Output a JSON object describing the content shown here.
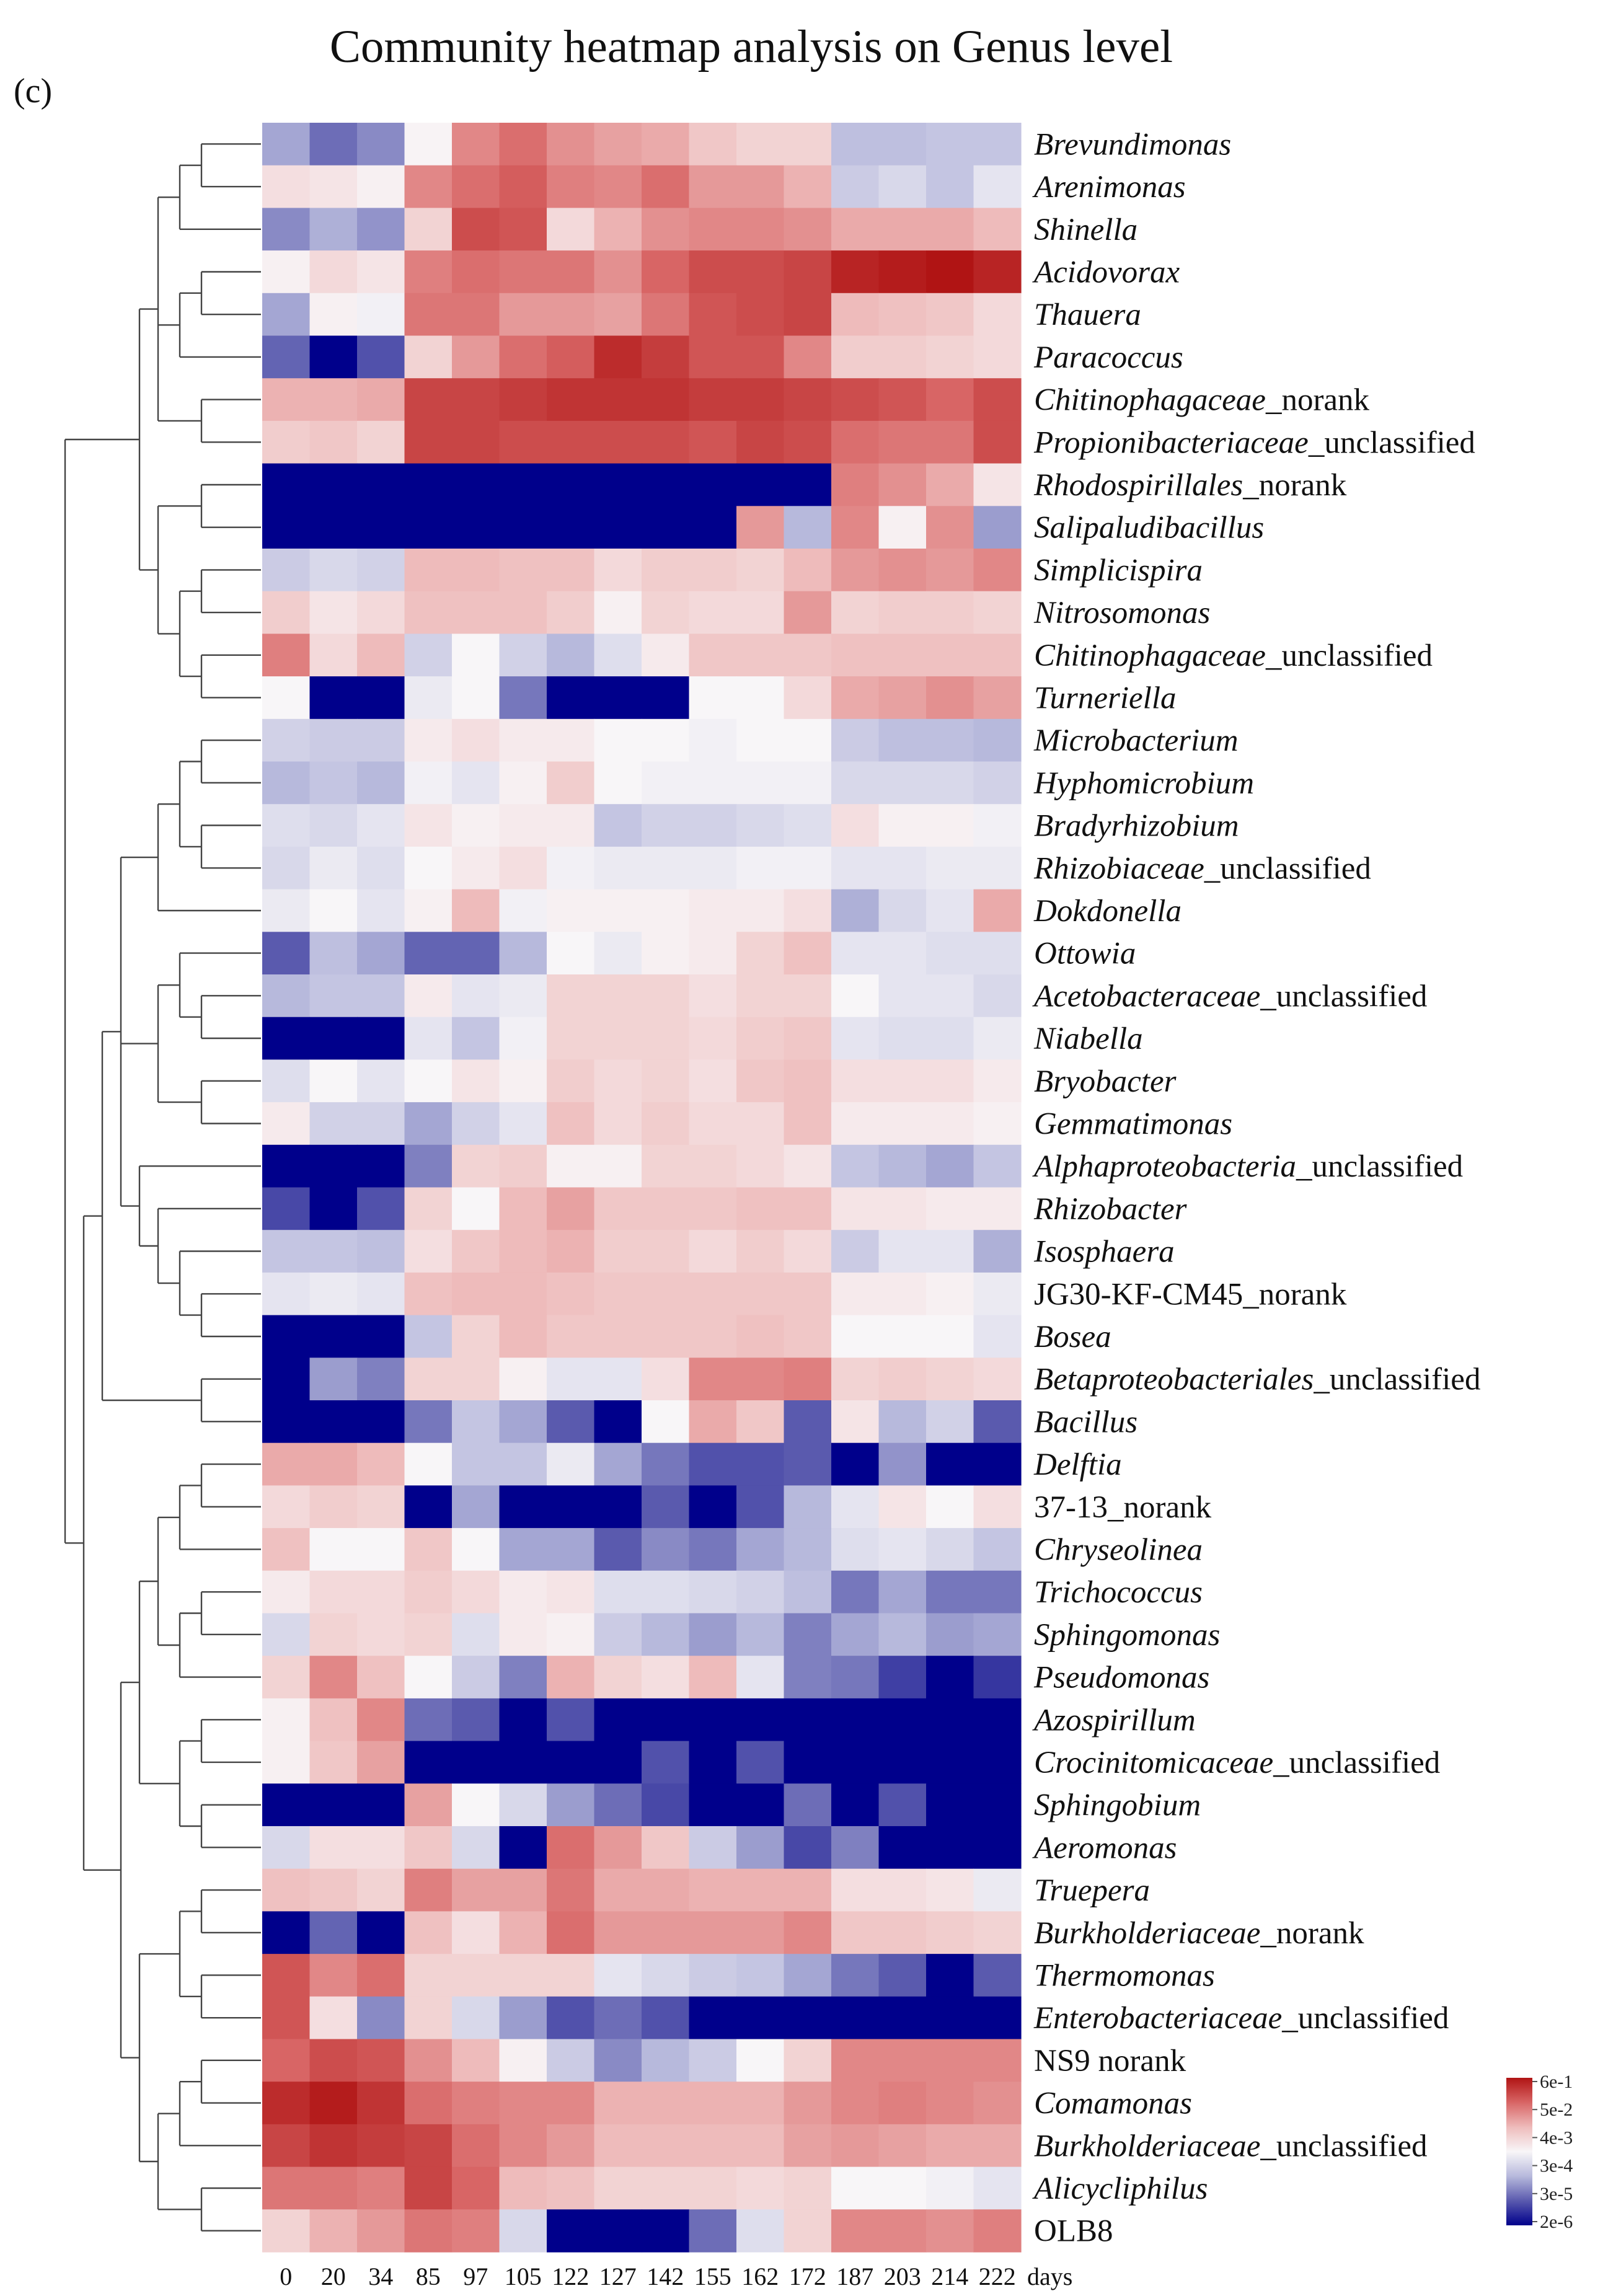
{
  "chart_data": {
    "type": "heatmap",
    "title": "Community heatmap analysis on Genus level",
    "panel_label": "(c)",
    "x_unit_label": "days",
    "columns": [
      "0",
      "20",
      "34",
      "85",
      "97",
      "105",
      "122",
      "127",
      "142",
      "155",
      "162",
      "172",
      "187",
      "203",
      "214",
      "222"
    ],
    "rows": [
      {
        "parts": [
          {
            "t": "Brevundimonas",
            "i": true
          }
        ]
      },
      {
        "parts": [
          {
            "t": "Arenimonas",
            "i": true
          }
        ]
      },
      {
        "parts": [
          {
            "t": "Shinella",
            "i": true
          }
        ]
      },
      {
        "parts": [
          {
            "t": "Acidovorax",
            "i": true
          }
        ]
      },
      {
        "parts": [
          {
            "t": "Thauera",
            "i": true
          }
        ]
      },
      {
        "parts": [
          {
            "t": "Paracoccus",
            "i": true
          }
        ]
      },
      {
        "parts": [
          {
            "t": "Chitinophagaceae",
            "i": true
          },
          {
            "t": "_norank",
            "i": false
          }
        ]
      },
      {
        "parts": [
          {
            "t": "Propionibacteriaceae",
            "i": true
          },
          {
            "t": "_unclassified",
            "i": false
          }
        ]
      },
      {
        "parts": [
          {
            "t": "Rhodospirillales",
            "i": true
          },
          {
            "t": "_norank",
            "i": false
          }
        ]
      },
      {
        "parts": [
          {
            "t": "Salipaludibacillus",
            "i": true
          }
        ]
      },
      {
        "parts": [
          {
            "t": "Simplicispira",
            "i": true
          }
        ]
      },
      {
        "parts": [
          {
            "t": "Nitrosomonas",
            "i": true
          }
        ]
      },
      {
        "parts": [
          {
            "t": "Chitinophagaceae",
            "i": true
          },
          {
            "t": "_unclassified",
            "i": false
          }
        ]
      },
      {
        "parts": [
          {
            "t": "Turneriella",
            "i": true
          }
        ]
      },
      {
        "parts": [
          {
            "t": "Microbacterium",
            "i": true
          }
        ]
      },
      {
        "parts": [
          {
            "t": "Hyphomicrobium",
            "i": true
          }
        ]
      },
      {
        "parts": [
          {
            "t": "Bradyrhizobium",
            "i": true
          }
        ]
      },
      {
        "parts": [
          {
            "t": "Rhizobiaceae",
            "i": true
          },
          {
            "t": "_unclassified",
            "i": false
          }
        ]
      },
      {
        "parts": [
          {
            "t": "Dokdonella",
            "i": true
          }
        ]
      },
      {
        "parts": [
          {
            "t": "Ottowia",
            "i": true
          }
        ]
      },
      {
        "parts": [
          {
            "t": "Acetobacteraceae",
            "i": true
          },
          {
            "t": "_unclassified",
            "i": false
          }
        ]
      },
      {
        "parts": [
          {
            "t": "Niabella",
            "i": true
          }
        ]
      },
      {
        "parts": [
          {
            "t": "Bryobacter",
            "i": true
          }
        ]
      },
      {
        "parts": [
          {
            "t": "Gemmatimonas",
            "i": true
          }
        ]
      },
      {
        "parts": [
          {
            "t": "Alphaproteobacteria",
            "i": true
          },
          {
            "t": "_unclassified",
            "i": false
          }
        ]
      },
      {
        "parts": [
          {
            "t": "Rhizobacter",
            "i": true
          }
        ]
      },
      {
        "parts": [
          {
            "t": "Isosphaera",
            "i": true
          }
        ]
      },
      {
        "parts": [
          {
            "t": "JG30-KF-CM45_norank",
            "i": false
          }
        ]
      },
      {
        "parts": [
          {
            "t": "Bosea",
            "i": true
          }
        ]
      },
      {
        "parts": [
          {
            "t": "Betaproteobacteriales",
            "i": true
          },
          {
            "t": "_unclassified",
            "i": false
          }
        ]
      },
      {
        "parts": [
          {
            "t": "Bacillus",
            "i": true
          }
        ]
      },
      {
        "parts": [
          {
            "t": "Delftia",
            "i": true
          }
        ]
      },
      {
        "parts": [
          {
            "t": "37-13_norank",
            "i": false
          }
        ]
      },
      {
        "parts": [
          {
            "t": "Chryseolinea",
            "i": true
          }
        ]
      },
      {
        "parts": [
          {
            "t": "Trichococcus",
            "i": true
          }
        ]
      },
      {
        "parts": [
          {
            "t": "Sphingomonas",
            "i": true
          }
        ]
      },
      {
        "parts": [
          {
            "t": "Pseudomonas",
            "i": true
          }
        ]
      },
      {
        "parts": [
          {
            "t": "Azospirillum",
            "i": true
          }
        ]
      },
      {
        "parts": [
          {
            "t": "Crocinitomicaceae",
            "i": true
          },
          {
            "t": "_unclassified",
            "i": false
          }
        ]
      },
      {
        "parts": [
          {
            "t": "Sphingobium",
            "i": true
          }
        ]
      },
      {
        "parts": [
          {
            "t": "Aeromonas",
            "i": true
          }
        ]
      },
      {
        "parts": [
          {
            "t": "Truepera",
            "i": true
          }
        ]
      },
      {
        "parts": [
          {
            "t": "Burkholderiaceae",
            "i": true
          },
          {
            "t": "_norank",
            "i": false
          }
        ]
      },
      {
        "parts": [
          {
            "t": "Thermomonas",
            "i": true
          }
        ]
      },
      {
        "parts": [
          {
            "t": "Enterobacteriaceae",
            "i": true
          },
          {
            "t": "_unclassified",
            "i": false
          }
        ]
      },
      {
        "parts": [
          {
            "t": "NS9 norank",
            "i": false
          }
        ]
      },
      {
        "parts": [
          {
            "t": "Comamonas",
            "i": true
          }
        ]
      },
      {
        "parts": [
          {
            "t": "Burkholderiaceae",
            "i": true
          },
          {
            "t": "_unclassified",
            "i": false
          }
        ]
      },
      {
        "parts": [
          {
            "t": "Alicycliphilus",
            "i": true
          }
        ]
      },
      {
        "parts": [
          {
            "t": "OLB8",
            "i": false
          }
        ]
      }
    ],
    "color_scale": {
      "levels": [
        -3,
        -2,
        -1,
        0,
        1,
        2,
        3
      ],
      "colors": [
        "#00008b",
        "#5a5aae",
        "#b7b9dc",
        "#f8f6f8",
        "#eebbbb",
        "#d86565",
        "#b01414"
      ],
      "legend_labels": [
        "6e-1",
        "5e-2",
        "4e-3",
        "3e-4",
        "3e-5",
        "2e-6"
      ]
    },
    "values": [
      [
        -1.2,
        -1.8,
        -1.5,
        0.05,
        1.6,
        1.9,
        1.5,
        1.3,
        1.2,
        0.8,
        0.6,
        0.6,
        -0.9,
        -0.9,
        -0.8,
        -0.8
      ],
      [
        0.4,
        0.3,
        0.1,
        1.6,
        1.9,
        2.1,
        1.7,
        1.6,
        1.9,
        1.4,
        1.4,
        1.1,
        -0.7,
        -0.5,
        -0.8,
        -0.3
      ],
      [
        -1.5,
        -1.1,
        -1.4,
        0.6,
        2.3,
        2.2,
        0.5,
        1.1,
        1.5,
        1.6,
        1.6,
        1.5,
        1.2,
        1.2,
        1.2,
        1.0
      ],
      [
        0.1,
        0.5,
        0.3,
        1.7,
        1.9,
        1.8,
        1.8,
        1.5,
        2.0,
        2.3,
        2.3,
        2.4,
        2.8,
        2.9,
        3.0,
        2.8
      ],
      [
        -1.2,
        0.1,
        -0.1,
        1.8,
        1.8,
        1.4,
        1.4,
        1.3,
        1.8,
        2.2,
        2.3,
        2.4,
        1.0,
        0.9,
        0.8,
        0.5
      ],
      [
        -1.9,
        -3.0,
        -2.1,
        0.6,
        1.4,
        1.9,
        2.1,
        2.7,
        2.5,
        2.2,
        2.2,
        1.6,
        0.7,
        0.7,
        0.6,
        0.5
      ],
      [
        1.1,
        1.1,
        1.2,
        2.4,
        2.4,
        2.5,
        2.6,
        2.6,
        2.6,
        2.5,
        2.5,
        2.4,
        2.3,
        2.2,
        2.0,
        2.3
      ],
      [
        0.7,
        0.8,
        0.6,
        2.4,
        2.4,
        2.3,
        2.3,
        2.3,
        2.3,
        2.2,
        2.4,
        2.3,
        1.9,
        1.8,
        1.8,
        2.3
      ],
      [
        -3,
        -3,
        -3,
        -3,
        -3,
        -3,
        -3,
        -3,
        -3,
        -3,
        -3,
        -3,
        1.7,
        1.5,
        1.2,
        0.3
      ],
      [
        -3,
        -3,
        -3,
        -3,
        -3,
        -3,
        -3,
        -3,
        -3,
        -3,
        1.4,
        -1.0,
        1.6,
        0.1,
        1.5,
        -1.3
      ],
      [
        -0.7,
        -0.5,
        -0.6,
        1.0,
        1.0,
        0.9,
        0.9,
        0.5,
        0.7,
        0.7,
        0.6,
        1.0,
        1.4,
        1.5,
        1.4,
        1.6
      ],
      [
        0.7,
        0.3,
        0.5,
        0.9,
        0.9,
        0.9,
        0.7,
        0.1,
        0.6,
        0.5,
        0.5,
        1.4,
        0.6,
        0.7,
        0.7,
        0.6
      ],
      [
        1.7,
        0.5,
        1.0,
        -0.6,
        0.0,
        -0.6,
        -1.0,
        -0.4,
        0.2,
        0.8,
        0.8,
        0.8,
        0.9,
        0.9,
        0.9,
        0.9
      ],
      [
        0.0,
        -3,
        -3,
        -0.2,
        0.0,
        -1.7,
        -3,
        -3,
        -3,
        0.0,
        0.0,
        0.5,
        1.2,
        1.3,
        1.5,
        1.3
      ],
      [
        -0.6,
        -0.7,
        -0.7,
        0.2,
        0.4,
        0.2,
        0.2,
        0.0,
        0.0,
        -0.1,
        0.0,
        0.0,
        -0.7,
        -0.9,
        -0.9,
        -1.0
      ],
      [
        -1.0,
        -0.8,
        -1.0,
        -0.1,
        -0.3,
        0.1,
        0.7,
        0.0,
        -0.1,
        -0.1,
        -0.1,
        -0.1,
        -0.5,
        -0.5,
        -0.5,
        -0.6
      ],
      [
        -0.4,
        -0.5,
        -0.3,
        0.3,
        0.1,
        0.2,
        0.2,
        -0.8,
        -0.6,
        -0.6,
        -0.5,
        -0.4,
        0.4,
        0.1,
        0.1,
        -0.1
      ],
      [
        -0.5,
        -0.2,
        -0.4,
        0.0,
        0.2,
        0.4,
        -0.1,
        -0.2,
        -0.2,
        -0.2,
        -0.1,
        -0.1,
        -0.3,
        -0.3,
        -0.2,
        -0.2
      ],
      [
        -0.2,
        0.0,
        -0.3,
        0.1,
        1.0,
        -0.1,
        0.1,
        0.1,
        0.1,
        0.2,
        0.2,
        0.4,
        -1.1,
        -0.5,
        -0.3,
        1.2
      ],
      [
        -2.0,
        -0.9,
        -1.2,
        -1.9,
        -1.9,
        -1.0,
        0.0,
        -0.2,
        0.1,
        0.2,
        0.6,
        0.9,
        -0.3,
        -0.3,
        -0.4,
        -0.4
      ],
      [
        -1.0,
        -0.8,
        -0.8,
        0.2,
        -0.3,
        -0.2,
        0.6,
        0.6,
        0.6,
        0.4,
        0.6,
        0.6,
        0.0,
        -0.3,
        -0.3,
        -0.5
      ],
      [
        -3,
        -3,
        -3,
        -0.3,
        -0.8,
        -0.1,
        0.6,
        0.6,
        0.6,
        0.5,
        0.7,
        0.8,
        -0.3,
        -0.4,
        -0.4,
        -0.2
      ],
      [
        -0.4,
        0.0,
        -0.3,
        0.0,
        0.3,
        0.1,
        0.7,
        0.5,
        0.6,
        0.4,
        0.8,
        0.9,
        0.4,
        0.4,
        0.4,
        0.2
      ],
      [
        0.2,
        -0.6,
        -0.6,
        -1.2,
        -0.6,
        -0.3,
        0.9,
        0.5,
        0.7,
        0.5,
        0.5,
        0.9,
        0.2,
        0.2,
        0.2,
        0.1
      ],
      [
        -3,
        -3,
        -3,
        -1.6,
        0.6,
        0.7,
        0.1,
        0.1,
        0.6,
        0.6,
        0.5,
        0.3,
        -0.8,
        -1.0,
        -1.2,
        -0.8
      ],
      [
        -2.2,
        -3,
        -2.1,
        0.6,
        0.0,
        1.0,
        1.3,
        0.8,
        0.8,
        0.8,
        0.9,
        0.9,
        0.3,
        0.3,
        0.2,
        0.2
      ],
      [
        -0.8,
        -0.8,
        -0.9,
        0.4,
        0.8,
        1.0,
        1.1,
        0.7,
        0.7,
        0.5,
        0.7,
        0.5,
        -0.7,
        -0.3,
        -0.3,
        -1.1
      ],
      [
        -0.3,
        -0.2,
        -0.3,
        0.9,
        1.0,
        1.0,
        0.9,
        0.8,
        0.8,
        0.8,
        0.8,
        0.8,
        0.2,
        0.2,
        0.1,
        -0.2
      ],
      [
        -3,
        -3,
        -3,
        -0.8,
        0.6,
        1.0,
        0.8,
        0.8,
        0.8,
        0.8,
        0.9,
        0.8,
        0.0,
        0.0,
        0.0,
        -0.3
      ],
      [
        -3,
        -1.3,
        -1.6,
        0.6,
        0.6,
        0.1,
        -0.3,
        -0.3,
        0.4,
        1.6,
        1.6,
        1.7,
        0.6,
        0.7,
        0.6,
        0.5
      ],
      [
        -3,
        -3,
        -3,
        -1.7,
        -0.8,
        -1.2,
        -2.0,
        -3,
        0.0,
        1.2,
        0.8,
        -2.0,
        0.3,
        -1.0,
        -0.6,
        -2.0
      ],
      [
        1.2,
        1.2,
        1.0,
        0.0,
        -0.8,
        -0.8,
        -0.2,
        -1.2,
        -1.7,
        -2.1,
        -2.1,
        -2.0,
        -3,
        -1.4,
        -3,
        -3
      ],
      [
        0.5,
        0.7,
        0.6,
        -3,
        -1.2,
        -3,
        -3,
        -3,
        -2.0,
        -3,
        -2.1,
        -1.0,
        -0.3,
        0.3,
        0.0,
        0.4
      ],
      [
        0.9,
        0.0,
        0.0,
        0.8,
        0.0,
        -1.2,
        -1.2,
        -2.0,
        -1.5,
        -1.7,
        -1.2,
        -1.0,
        -0.4,
        -0.3,
        -0.5,
        -0.8
      ],
      [
        0.2,
        0.5,
        0.5,
        0.7,
        0.5,
        0.2,
        0.3,
        -0.4,
        -0.4,
        -0.5,
        -0.6,
        -0.9,
        -1.7,
        -1.2,
        -1.7,
        -1.7
      ],
      [
        -0.5,
        0.6,
        0.5,
        0.6,
        -0.4,
        0.2,
        0.1,
        -0.7,
        -1.0,
        -1.3,
        -1.0,
        -1.6,
        -1.2,
        -1.0,
        -1.3,
        -1.2
      ],
      [
        0.6,
        1.6,
        0.9,
        0.0,
        -0.7,
        -1.6,
        1.1,
        0.6,
        0.4,
        1.0,
        -0.3,
        -1.6,
        -1.7,
        -2.3,
        -3,
        -2.4
      ],
      [
        0.1,
        0.9,
        1.6,
        -1.8,
        -2.0,
        -3,
        -2.1,
        -3,
        -3,
        -3,
        -3,
        -3,
        -3,
        -3,
        -3,
        -3
      ],
      [
        0.1,
        0.8,
        1.3,
        -3,
        -3,
        -3,
        -3,
        -3,
        -2.1,
        -3,
        -2.1,
        -3,
        -3,
        -3,
        -3,
        -3
      ],
      [
        -3,
        -3,
        -3,
        1.3,
        0.0,
        -0.5,
        -1.3,
        -1.8,
        -2.2,
        -3,
        -3,
        -1.8,
        -3,
        -2.1,
        -3,
        -3
      ],
      [
        -0.5,
        0.4,
        0.4,
        0.8,
        -0.5,
        -3,
        1.9,
        1.4,
        0.8,
        -0.7,
        -1.3,
        -2.2,
        -1.6,
        -3,
        -3,
        -3
      ],
      [
        0.9,
        0.8,
        0.6,
        1.7,
        1.3,
        1.3,
        1.8,
        1.2,
        1.2,
        1.1,
        1.1,
        1.1,
        0.4,
        0.4,
        0.3,
        -0.2
      ],
      [
        -3,
        -1.9,
        -3,
        0.9,
        0.4,
        1.1,
        1.9,
        1.4,
        1.4,
        1.4,
        1.4,
        1.6,
        0.8,
        0.8,
        0.7,
        0.6
      ],
      [
        2.2,
        1.6,
        1.9,
        0.6,
        0.6,
        0.6,
        0.6,
        -0.3,
        -0.5,
        -0.7,
        -0.8,
        -1.2,
        -1.7,
        -2.0,
        -3,
        -2.0
      ],
      [
        2.2,
        0.4,
        -1.5,
        0.6,
        -0.5,
        -1.3,
        -2.1,
        -1.8,
        -2.1,
        -3,
        -3,
        -3,
        -3,
        -3,
        -3,
        -3
      ],
      [
        2.0,
        2.3,
        2.2,
        1.5,
        1.0,
        0.1,
        -0.7,
        -1.5,
        -1.0,
        -0.7,
        0.0,
        0.6,
        1.6,
        1.6,
        1.6,
        1.6
      ],
      [
        2.7,
        2.9,
        2.6,
        1.9,
        1.7,
        1.6,
        1.6,
        1.1,
        1.1,
        1.1,
        1.1,
        1.4,
        1.6,
        1.7,
        1.6,
        1.5
      ],
      [
        2.4,
        2.6,
        2.5,
        2.4,
        1.9,
        1.6,
        1.4,
        1.0,
        1.0,
        1.0,
        1.0,
        1.3,
        1.4,
        1.3,
        1.2,
        1.2
      ],
      [
        1.8,
        1.8,
        1.7,
        2.4,
        2.0,
        1.0,
        0.9,
        0.6,
        0.6,
        0.6,
        0.5,
        0.6,
        0.0,
        0.0,
        -0.1,
        -0.3
      ],
      [
        0.6,
        1.1,
        1.4,
        1.8,
        1.7,
        -0.5,
        -3,
        -3,
        -3,
        -1.8,
        -0.4,
        0.6,
        1.6,
        1.6,
        1.5,
        1.7
      ]
    ]
  }
}
